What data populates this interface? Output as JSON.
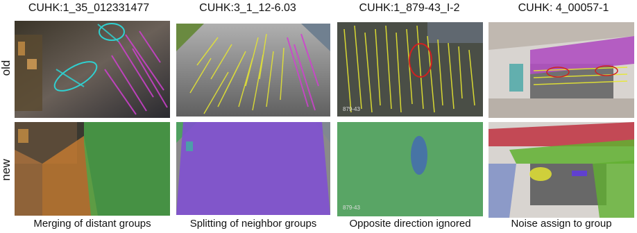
{
  "figure": {
    "columns": [
      {
        "title": "CUHK:1_35_012331477",
        "caption": "Merging of distant groups"
      },
      {
        "title": "CUHK:3_1_12-6.03",
        "caption": "Splitting of neighbor groups"
      },
      {
        "title": "CUHK:1_879-43_I-2",
        "caption": "Opposite direction ignored"
      },
      {
        "title": "CUHK: 4_00057-1",
        "caption": "Noise assign to group"
      }
    ],
    "rows": [
      {
        "label": "old"
      },
      {
        "label": "new"
      }
    ],
    "frame_text": {
      "old_879": "879-43",
      "new_879": "879-43"
    }
  },
  "colors": {
    "magenta": "#d040d0",
    "yellow": "#e8e830",
    "cyan": "#30d0d0",
    "green": "#4aa84a",
    "purple": "#8050d0",
    "orange": "#d08030",
    "red": "#d02020",
    "blue": "#4060c0"
  }
}
